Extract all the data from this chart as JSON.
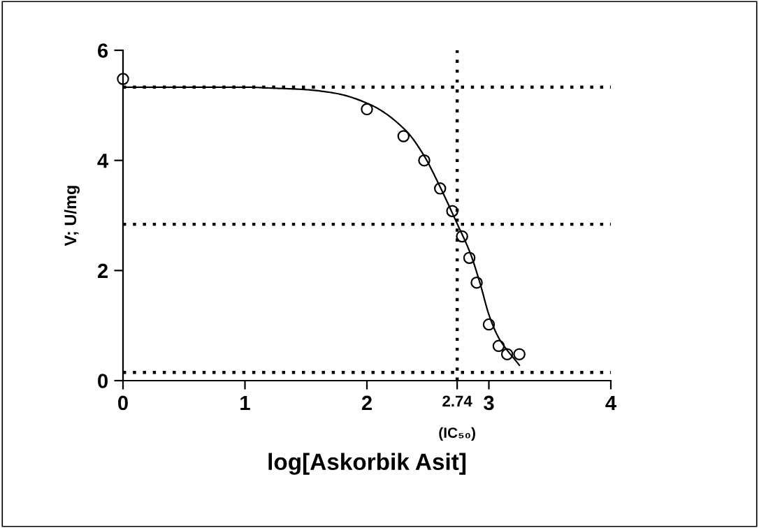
{
  "chart_data": {
    "type": "scatter",
    "xlabel": "log[Askorbik Asit]",
    "ylabel": "V; U/mg",
    "xlim": [
      0,
      4
    ],
    "ylim": [
      0,
      6
    ],
    "xticks": [
      0,
      1,
      2,
      {
        "value": 2.74,
        "label": "2.74"
      },
      3,
      4
    ],
    "yticks": [
      0,
      2,
      4,
      6
    ],
    "grid": false,
    "legend": false,
    "marker": "circle",
    "annotations": [
      "(IC₅₀)"
    ],
    "ref_lines": [
      {
        "axis": "y",
        "value": 5.33,
        "line_style": "dotted",
        "color": "#000000"
      },
      {
        "axis": "y",
        "value": 2.84,
        "line_style": "dotted",
        "color": "#000000"
      },
      {
        "axis": "y",
        "value": 0.15,
        "line_style": "dotted",
        "color": "#000000"
      },
      {
        "axis": "x",
        "value": 2.74,
        "line_style": "dotted",
        "color": "#000000"
      }
    ],
    "series": [
      {
        "color": "#000000",
        "x": [
          0,
          2.0,
          2.3,
          2.47,
          2.6,
          2.7,
          2.78,
          2.84,
          2.9,
          3.0,
          3.08,
          3.15,
          3.25
        ],
        "values": [
          5.48,
          4.93,
          4.44,
          4.0,
          3.49,
          3.08,
          2.62,
          2.23,
          1.78,
          1.02,
          0.63,
          0.48,
          0.48
        ]
      },
      {
        "type": "line",
        "color": "#000000",
        "marker": "none",
        "line_style": "solid",
        "x": [
          0,
          0.5,
          1.0,
          1.25,
          1.47,
          1.74,
          2.03,
          2.32,
          2.47,
          2.58,
          2.74,
          2.85,
          2.93,
          3.0,
          3.08,
          3.25
        ],
        "values": [
          5.33,
          5.33,
          5.33,
          5.31,
          5.29,
          5.22,
          5.01,
          4.54,
          4.08,
          3.61,
          2.85,
          2.3,
          1.75,
          1.2,
          0.78,
          0.28
        ]
      }
    ]
  }
}
